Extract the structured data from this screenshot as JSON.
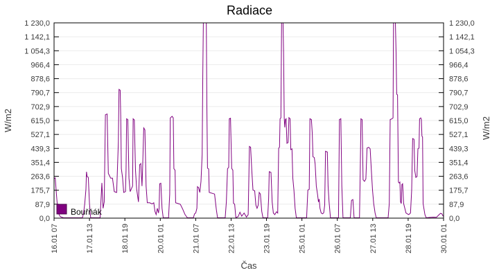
{
  "title": "Radiace",
  "axes": {
    "x_label": "Čas",
    "y_left_label": "W/m2",
    "y_right_label": "W/m2",
    "y_tick_labels": [
      "1 230,0",
      "1 142,1",
      "1 054,3",
      "966,4",
      "878,6",
      "790,7",
      "702,9",
      "615,0",
      "527,1",
      "439,3",
      "351,4",
      "263,6",
      "175,7",
      "87,9",
      "0,0"
    ],
    "x_tick_labels": [
      "16.01 07",
      "17.01 13",
      "18.01 19",
      "20.01 01",
      "21.01 07",
      "22.01 13",
      "23.01 19",
      "25.01 01",
      "26.01 07",
      "27.01 13",
      "28.01 19",
      "30.01 01"
    ]
  },
  "legend": {
    "label": "Bouřňák",
    "swatch_color": "#800080"
  },
  "colors": {
    "series": "#800080",
    "grid": "#ebebeb",
    "axis": "#000000",
    "tick_text": "#3a3a3a",
    "title_text": "#000000",
    "background": "#ffffff"
  },
  "chart_data": {
    "type": "line",
    "title": "Radiace",
    "xlabel": "Čas",
    "ylabel": "W/m2",
    "ylim": [
      0,
      1230
    ],
    "y_tick_step": 87.9,
    "grid": "horizontal-only",
    "legend_position": "inside-bottom-left",
    "x_unit": "hours since 16.01 07:00",
    "x_tick_hours": [
      0,
      30,
      60,
      90,
      120,
      150,
      180,
      210,
      240,
      270,
      300,
      330
    ],
    "x_tick_labels": [
      "16.01 07",
      "17.01 13",
      "18.01 19",
      "20.01 01",
      "21.01 07",
      "22.01 13",
      "23.01 19",
      "25.01 01",
      "26.01 07",
      "27.01 13",
      "28.01 19",
      "30.01 01"
    ],
    "note": "values above 1230 are clipped at plot top",
    "series": [
      {
        "name": "Bouřňák",
        "color": "#800080",
        "points": [
          [
            0,
            247
          ],
          [
            1,
            252
          ],
          [
            2,
            150
          ],
          [
            3,
            60
          ],
          [
            4,
            25
          ],
          [
            5,
            10
          ],
          [
            6,
            5
          ],
          [
            8,
            0
          ],
          [
            24,
            0
          ],
          [
            25,
            30
          ],
          [
            26,
            90
          ],
          [
            27,
            180
          ],
          [
            27.5,
            290
          ],
          [
            28,
            260
          ],
          [
            29,
            255
          ],
          [
            30,
            90
          ],
          [
            31,
            0
          ],
          [
            39,
            0
          ],
          [
            40.5,
            220
          ],
          [
            41.5,
            60
          ],
          [
            42.5,
            100
          ],
          [
            43.5,
            650
          ],
          [
            45,
            655
          ],
          [
            46,
            280
          ],
          [
            48,
            250
          ],
          [
            49.5,
            250
          ],
          [
            51,
            165
          ],
          [
            53,
            160
          ],
          [
            54.5,
            480
          ],
          [
            55,
            810
          ],
          [
            56,
            805
          ],
          [
            56.5,
            640
          ],
          [
            57,
            310
          ],
          [
            58,
            255
          ],
          [
            59,
            160
          ],
          [
            60.5,
            165
          ],
          [
            61,
            300
          ],
          [
            61.5,
            625
          ],
          [
            62.5,
            620
          ],
          [
            63.5,
            250
          ],
          [
            64.5,
            165
          ],
          [
            66.5,
            200
          ],
          [
            67,
            625
          ],
          [
            68,
            618
          ],
          [
            69,
            300
          ],
          [
            70,
            180
          ],
          [
            71.5,
            100
          ],
          [
            72.5,
            335
          ],
          [
            73.5,
            342
          ],
          [
            74.5,
            200
          ],
          [
            75,
            300
          ],
          [
            76,
            567
          ],
          [
            77,
            555
          ],
          [
            78,
            200
          ],
          [
            79,
            95
          ],
          [
            81,
            95
          ],
          [
            83,
            88
          ],
          [
            84.5,
            95
          ],
          [
            85.5,
            40
          ],
          [
            86.5,
            20
          ],
          [
            87.5,
            60
          ],
          [
            88.5,
            30
          ],
          [
            89,
            60
          ],
          [
            89.5,
            215
          ],
          [
            90.5,
            218
          ],
          [
            91.5,
            60
          ],
          [
            92.5,
            0
          ],
          [
            97,
            0
          ],
          [
            98,
            150
          ],
          [
            98.5,
            630
          ],
          [
            100,
            640
          ],
          [
            101,
            630
          ],
          [
            101.5,
            310
          ],
          [
            102.5,
            300
          ],
          [
            103,
            95
          ],
          [
            105,
            90
          ],
          [
            107,
            85
          ],
          [
            109,
            55
          ],
          [
            111,
            20
          ],
          [
            113,
            0
          ],
          [
            118,
            0
          ],
          [
            119,
            25
          ],
          [
            120,
            30
          ],
          [
            121,
            60
          ],
          [
            121.5,
            196
          ],
          [
            122.5,
            190
          ],
          [
            123.5,
            160
          ],
          [
            124.5,
            230
          ],
          [
            125.5,
            400
          ],
          [
            126,
            900
          ],
          [
            126.5,
            1230
          ],
          [
            129,
            1230
          ],
          [
            129.5,
            700
          ],
          [
            130,
            313
          ],
          [
            131,
            308
          ],
          [
            131.5,
            160
          ],
          [
            136,
            150
          ],
          [
            137.5,
            50
          ],
          [
            138.5,
            0
          ],
          [
            145,
            0
          ],
          [
            146,
            100
          ],
          [
            147,
            310
          ],
          [
            148,
            318
          ],
          [
            148.5,
            625
          ],
          [
            149.5,
            628
          ],
          [
            150.5,
            312
          ],
          [
            151.5,
            300
          ],
          [
            152,
            92
          ],
          [
            153,
            85
          ],
          [
            154,
            0
          ],
          [
            156,
            8
          ],
          [
            157.5,
            35
          ],
          [
            159,
            10
          ],
          [
            161,
            30
          ],
          [
            163,
            5
          ],
          [
            164.5,
            20
          ],
          [
            165.5,
            450
          ],
          [
            166.5,
            445
          ],
          [
            167.5,
            300
          ],
          [
            168.5,
            175
          ],
          [
            170,
            170
          ],
          [
            171,
            80
          ],
          [
            172,
            60
          ],
          [
            173,
            80
          ],
          [
            173.8,
            160
          ],
          [
            174.8,
            150
          ],
          [
            176,
            40
          ],
          [
            177,
            0
          ],
          [
            181,
            0
          ],
          [
            181.8,
            120
          ],
          [
            182.3,
            291
          ],
          [
            183.8,
            286
          ],
          [
            184.8,
            100
          ],
          [
            185.8,
            30
          ],
          [
            187,
            20
          ],
          [
            188.5,
            38
          ],
          [
            189.5,
            30
          ],
          [
            190.3,
            440
          ],
          [
            191,
            445
          ],
          [
            191.5,
            625
          ],
          [
            192.2,
            630
          ],
          [
            192.8,
            1230
          ],
          [
            194,
            1230
          ],
          [
            194.5,
            1040
          ],
          [
            195,
            630
          ],
          [
            195.5,
            570
          ],
          [
            196,
            620
          ],
          [
            196.6,
            625
          ],
          [
            197.3,
            470
          ],
          [
            198.3,
            475
          ],
          [
            199,
            632
          ],
          [
            200,
            625
          ],
          [
            200.6,
            430
          ],
          [
            201.6,
            435
          ],
          [
            202.3,
            250
          ],
          [
            203.2,
            175
          ],
          [
            204.2,
            60
          ],
          [
            205.3,
            0
          ],
          [
            214,
            0
          ],
          [
            215,
            175
          ],
          [
            216.2,
            180
          ],
          [
            216.8,
            625
          ],
          [
            218,
            620
          ],
          [
            218.8,
            530
          ],
          [
            219.4,
            385
          ],
          [
            220.5,
            380
          ],
          [
            221.2,
            340
          ],
          [
            222.2,
            200
          ],
          [
            223.2,
            150
          ],
          [
            224,
            100
          ],
          [
            224.6,
            118
          ],
          [
            225.3,
            60
          ],
          [
            226.3,
            30
          ],
          [
            227.5,
            25
          ],
          [
            228.5,
            32
          ],
          [
            229.3,
            80
          ],
          [
            230,
            420
          ],
          [
            231.5,
            415
          ],
          [
            232.2,
            200
          ],
          [
            233,
            100
          ],
          [
            234.2,
            0
          ],
          [
            241,
            0
          ],
          [
            241.8,
            620
          ],
          [
            243,
            625
          ],
          [
            243.8,
            200
          ],
          [
            244.8,
            0
          ],
          [
            251,
            0
          ],
          [
            252,
            110
          ],
          [
            253.2,
            115
          ],
          [
            254.2,
            0
          ],
          [
            258.8,
            0
          ],
          [
            259.4,
            300
          ],
          [
            260,
            625
          ],
          [
            261,
            620
          ],
          [
            261.8,
            240
          ],
          [
            263,
            230
          ],
          [
            264.2,
            245
          ],
          [
            265.2,
            440
          ],
          [
            266.6,
            445
          ],
          [
            267.8,
            435
          ],
          [
            268.8,
            300
          ],
          [
            269.8,
            175
          ],
          [
            270.8,
            90
          ],
          [
            272,
            30
          ],
          [
            273,
            0
          ],
          [
            283,
            0
          ],
          [
            284,
            90
          ],
          [
            284.8,
            620
          ],
          [
            286.4,
            625
          ],
          [
            287.2,
            630
          ],
          [
            287.6,
            1230
          ],
          [
            289.2,
            1230
          ],
          [
            289.8,
            1040
          ],
          [
            290.3,
            780
          ],
          [
            291,
            775
          ],
          [
            291.8,
            225
          ],
          [
            292.4,
            220
          ],
          [
            293,
            225
          ],
          [
            293.6,
            100
          ],
          [
            294.2,
            90
          ],
          [
            294.7,
            210
          ],
          [
            295.3,
            215
          ],
          [
            296.2,
            90
          ],
          [
            297.2,
            60
          ],
          [
            298.2,
            30
          ],
          [
            299.3,
            25
          ],
          [
            300.5,
            20
          ],
          [
            302,
            30
          ],
          [
            303,
            175
          ],
          [
            303.8,
            500
          ],
          [
            305,
            495
          ],
          [
            305.6,
            300
          ],
          [
            306.5,
            255
          ],
          [
            307.5,
            260
          ],
          [
            308.3,
            435
          ],
          [
            309.2,
            440
          ],
          [
            309.7,
            625
          ],
          [
            310.7,
            630
          ],
          [
            311.2,
            620
          ],
          [
            311.7,
            515
          ],
          [
            312.2,
            510
          ],
          [
            312.7,
            90
          ],
          [
            313.3,
            60
          ],
          [
            314.2,
            20
          ],
          [
            315.3,
            0
          ],
          [
            318,
            2
          ],
          [
            321,
            4
          ],
          [
            324,
            3
          ],
          [
            326.5,
            22
          ],
          [
            327.5,
            28
          ],
          [
            328.6,
            25
          ],
          [
            329.5,
            12
          ],
          [
            330,
            10
          ]
        ]
      }
    ]
  }
}
